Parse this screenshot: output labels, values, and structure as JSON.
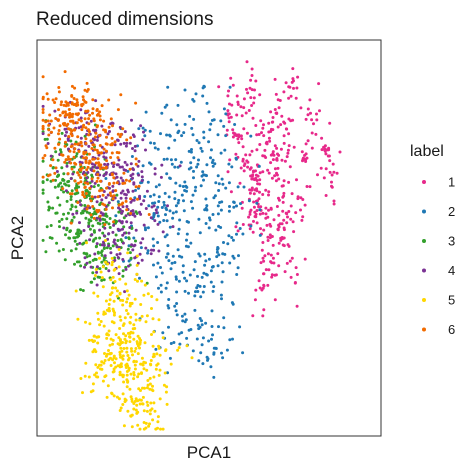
{
  "chart_data": {
    "type": "scatter",
    "title": "Reduced dimensions",
    "xlabel": "PCA1",
    "ylabel": "PCA2",
    "legend_title": "label",
    "legend_placement": "right",
    "axis_ticks_shown": false,
    "grid": false,
    "series": [
      {
        "name": "1",
        "color": "#e7298a",
        "count": 420,
        "spread": [
          0.045,
          0.11
        ],
        "points": [
          [
            0.62,
            0.88
          ],
          [
            0.56,
            0.84
          ],
          [
            0.68,
            0.82
          ],
          [
            0.74,
            0.86
          ],
          [
            0.66,
            0.76
          ],
          [
            0.72,
            0.74
          ],
          [
            0.8,
            0.8
          ],
          [
            0.78,
            0.7
          ],
          [
            0.7,
            0.66
          ],
          [
            0.64,
            0.62
          ],
          [
            0.7,
            0.58
          ],
          [
            0.76,
            0.6
          ],
          [
            0.84,
            0.72
          ],
          [
            0.6,
            0.7
          ],
          [
            0.66,
            0.52
          ],
          [
            0.72,
            0.5
          ],
          [
            0.62,
            0.56
          ],
          [
            0.68,
            0.44
          ],
          [
            0.74,
            0.4
          ],
          [
            0.66,
            0.38
          ],
          [
            0.58,
            0.76
          ],
          [
            0.86,
            0.66
          ],
          [
            0.63,
            0.67
          ],
          [
            0.69,
            0.71
          ]
        ]
      },
      {
        "name": "2",
        "color": "#1f78b4",
        "count": 420,
        "spread": [
          0.13,
          0.14
        ],
        "points": [
          [
            0.34,
            0.74
          ],
          [
            0.42,
            0.76
          ],
          [
            0.48,
            0.72
          ],
          [
            0.52,
            0.64
          ],
          [
            0.46,
            0.62
          ],
          [
            0.4,
            0.6
          ],
          [
            0.34,
            0.56
          ],
          [
            0.44,
            0.54
          ],
          [
            0.52,
            0.52
          ],
          [
            0.56,
            0.58
          ],
          [
            0.38,
            0.46
          ],
          [
            0.46,
            0.44
          ],
          [
            0.54,
            0.46
          ],
          [
            0.36,
            0.38
          ],
          [
            0.44,
            0.36
          ],
          [
            0.48,
            0.28
          ],
          [
            0.52,
            0.22
          ],
          [
            0.42,
            0.26
          ],
          [
            0.3,
            0.64
          ],
          [
            0.58,
            0.7
          ],
          [
            0.5,
            0.82
          ],
          [
            0.28,
            0.5
          ],
          [
            0.4,
            0.68
          ],
          [
            0.48,
            0.4
          ]
        ]
      },
      {
        "name": "3",
        "color": "#33a02c",
        "count": 330,
        "spread": [
          0.14,
          0.1
        ],
        "points": [
          [
            0.08,
            0.74
          ],
          [
            0.1,
            0.7
          ],
          [
            0.12,
            0.66
          ],
          [
            0.14,
            0.62
          ],
          [
            0.1,
            0.58
          ],
          [
            0.16,
            0.56
          ],
          [
            0.12,
            0.52
          ],
          [
            0.18,
            0.5
          ],
          [
            0.14,
            0.46
          ],
          [
            0.2,
            0.44
          ],
          [
            0.16,
            0.6
          ],
          [
            0.06,
            0.66
          ],
          [
            0.2,
            0.54
          ],
          [
            0.22,
            0.48
          ],
          [
            0.1,
            0.62
          ],
          [
            0.18,
            0.4
          ],
          [
            0.14,
            0.55
          ],
          [
            0.09,
            0.5
          ]
        ]
      },
      {
        "name": "4",
        "color": "#7b3294",
        "count": 330,
        "spread": [
          0.14,
          0.1
        ],
        "points": [
          [
            0.12,
            0.78
          ],
          [
            0.16,
            0.74
          ],
          [
            0.2,
            0.72
          ],
          [
            0.24,
            0.68
          ],
          [
            0.22,
            0.62
          ],
          [
            0.26,
            0.58
          ],
          [
            0.24,
            0.52
          ],
          [
            0.28,
            0.48
          ],
          [
            0.22,
            0.44
          ],
          [
            0.18,
            0.66
          ],
          [
            0.14,
            0.7
          ],
          [
            0.26,
            0.74
          ],
          [
            0.2,
            0.58
          ],
          [
            0.28,
            0.64
          ],
          [
            0.3,
            0.56
          ],
          [
            0.24,
            0.46
          ],
          [
            0.08,
            0.76
          ],
          [
            0.18,
            0.52
          ]
        ]
      },
      {
        "name": "5",
        "color": "#ffd700",
        "count": 380,
        "spread": [
          0.12,
          0.12
        ],
        "points": [
          [
            0.22,
            0.4
          ],
          [
            0.2,
            0.34
          ],
          [
            0.24,
            0.3
          ],
          [
            0.28,
            0.28
          ],
          [
            0.22,
            0.24
          ],
          [
            0.26,
            0.22
          ],
          [
            0.3,
            0.18
          ],
          [
            0.26,
            0.14
          ],
          [
            0.32,
            0.12
          ],
          [
            0.28,
            0.08
          ],
          [
            0.2,
            0.2
          ],
          [
            0.18,
            0.28
          ],
          [
            0.3,
            0.24
          ],
          [
            0.34,
            0.2
          ],
          [
            0.24,
            0.36
          ],
          [
            0.32,
            0.06
          ],
          [
            0.26,
            0.18
          ],
          [
            0.22,
            0.16
          ]
        ]
      },
      {
        "name": "6",
        "color": "#f26b00",
        "count": 340,
        "spread": [
          0.13,
          0.1
        ],
        "points": [
          [
            0.08,
            0.82
          ],
          [
            0.12,
            0.8
          ],
          [
            0.1,
            0.76
          ],
          [
            0.14,
            0.74
          ],
          [
            0.18,
            0.76
          ],
          [
            0.16,
            0.7
          ],
          [
            0.2,
            0.68
          ],
          [
            0.12,
            0.66
          ],
          [
            0.18,
            0.62
          ],
          [
            0.22,
            0.6
          ],
          [
            0.16,
            0.58
          ],
          [
            0.06,
            0.8
          ],
          [
            0.1,
            0.84
          ],
          [
            0.14,
            0.78
          ],
          [
            0.2,
            0.72
          ],
          [
            0.12,
            0.72
          ],
          [
            0.09,
            0.7
          ],
          [
            0.18,
            0.82
          ]
        ]
      }
    ]
  }
}
